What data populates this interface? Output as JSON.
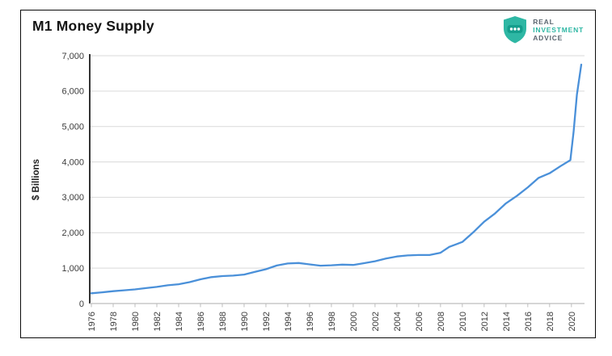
{
  "header": {
    "logo": {
      "icon": "shield-with-three-dots",
      "shield_color": "#2eb7a4",
      "shield_band_color": "#149e8c",
      "line1": "REAL",
      "line2": "INVESTMENT",
      "line3": "ADVICE",
      "text_gray": "#5b6670",
      "text_teal": "#2eb7a4"
    }
  },
  "chart_data": {
    "type": "line",
    "title": "M1 Money Supply",
    "xlabel": "",
    "ylabel": "$ Billions",
    "ylim": [
      0,
      7000
    ],
    "ytick_step": 1000,
    "yticks": [
      "0",
      "1,000",
      "2,000",
      "3,000",
      "4,000",
      "5,000",
      "6,000",
      "7,000"
    ],
    "xlim": [
      1975.85,
      2021.2
    ],
    "xticks": [
      1976,
      1978,
      1980,
      1982,
      1984,
      1986,
      1988,
      1990,
      1992,
      1994,
      1996,
      1998,
      2000,
      2002,
      2004,
      2006,
      2008,
      2010,
      2012,
      2014,
      2016,
      2018,
      2020
    ],
    "grid": "horizontal-only",
    "legend": "none",
    "line_color": "#4a90d9",
    "gridline_color": "#d9d9d9",
    "y_axis_color": "#000000",
    "x_axis_color": "#bdbdbd",
    "tick_label_color": "#3c3c3c",
    "series": [
      {
        "name": "M1 Money Supply",
        "x": [
          1976,
          1977,
          1978,
          1979,
          1980,
          1981,
          1982,
          1983,
          1984,
          1985,
          1986,
          1987,
          1988,
          1989,
          1990,
          1991,
          1992,
          1993,
          1994,
          1995,
          1996,
          1997,
          1998,
          1999,
          2000,
          2001,
          2002,
          2003,
          2004,
          2005,
          2006,
          2007,
          2008,
          2008.8,
          2009.5,
          2010,
          2011,
          2012,
          2013,
          2014,
          2015,
          2016,
          2017,
          2018,
          2019,
          2019.9,
          2020.2,
          2020.5,
          2020.9
        ],
        "values": [
          290,
          318,
          348,
          375,
          400,
          435,
          470,
          515,
          545,
          605,
          685,
          745,
          775,
          790,
          818,
          895,
          970,
          1075,
          1130,
          1145,
          1105,
          1070,
          1080,
          1100,
          1090,
          1140,
          1195,
          1270,
          1330,
          1360,
          1370,
          1370,
          1435,
          1600,
          1680,
          1740,
          2010,
          2310,
          2545,
          2830,
          3040,
          3280,
          3550,
          3680,
          3880,
          4050,
          4850,
          5900,
          6750
        ]
      }
    ]
  }
}
